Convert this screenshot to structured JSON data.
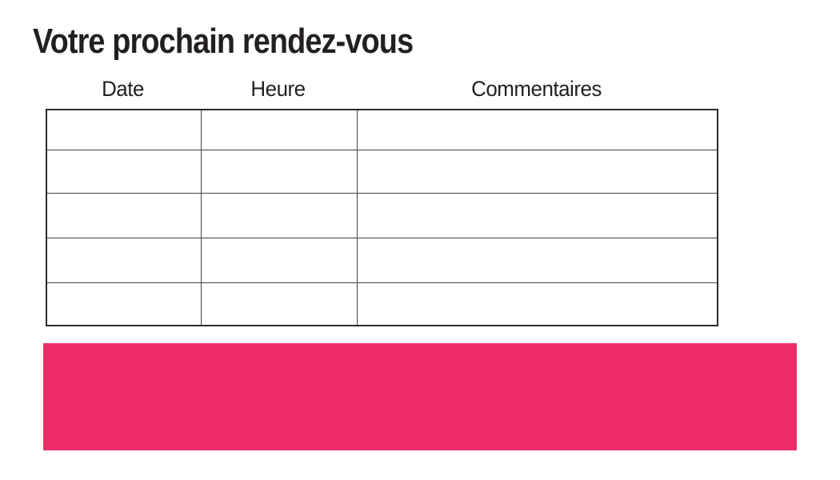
{
  "page": {
    "title": "Votre prochain rendez-vous"
  },
  "appointments_table": {
    "columns": [
      {
        "label": "Date"
      },
      {
        "label": "Heure"
      },
      {
        "label": "Commentaires"
      }
    ],
    "row_count": 5,
    "rows": [
      {
        "date": "",
        "heure": "",
        "commentaires": ""
      },
      {
        "date": "",
        "heure": "",
        "commentaires": ""
      },
      {
        "date": "",
        "heure": "",
        "commentaires": ""
      },
      {
        "date": "",
        "heure": "",
        "commentaires": ""
      },
      {
        "date": "",
        "heure": "",
        "commentaires": ""
      }
    ]
  },
  "banner": {
    "text": ""
  },
  "colors": {
    "accent-pink": "#EE2D68",
    "text": "#231F20",
    "border-outer": "#2B2B2B",
    "border-inner": "#444444",
    "bg": "#FFFFFF"
  }
}
